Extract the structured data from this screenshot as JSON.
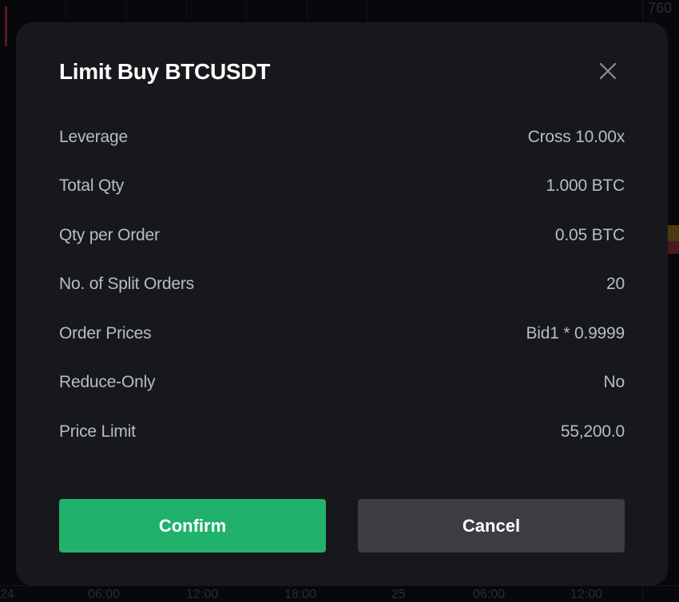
{
  "background": {
    "price_axis_labels": [
      "760"
    ],
    "time_axis_labels": [
      "24",
      "06:00",
      "12:00",
      "18:00",
      "25",
      "06:00",
      "12:00"
    ]
  },
  "dialog": {
    "title": "Limit Buy BTCUSDT",
    "close_icon": "close-icon",
    "rows": [
      {
        "label": "Leverage",
        "value": "Cross 10.00x"
      },
      {
        "label": "Total Qty",
        "value": "1.000 BTC"
      },
      {
        "label": "Qty per Order",
        "value": "0.05 BTC"
      },
      {
        "label": "No. of Split Orders",
        "value": "20"
      },
      {
        "label": "Order Prices",
        "value": "Bid1 * 0.9999"
      },
      {
        "label": "Reduce-Only",
        "value": "No"
      },
      {
        "label": "Price Limit",
        "value": "55,200.0"
      }
    ],
    "confirm_label": "Confirm",
    "cancel_label": "Cancel"
  },
  "colors": {
    "confirm": "#20b26c",
    "cancel": "#3c3d42",
    "dialog_bg": "#17181c"
  }
}
